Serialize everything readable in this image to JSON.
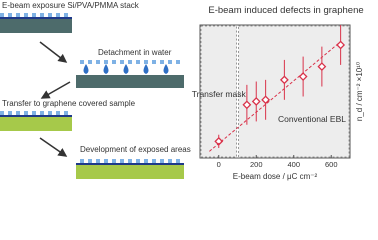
{
  "schematic": {
    "steps": [
      "E-beam exposure Si/PVA/PMMA stack",
      "Detachment in water",
      "Transfer to graphene covered sample",
      "Development of exposed areas"
    ]
  },
  "chart_data": {
    "type": "scatter",
    "title": "E-beam induced defects in graphene",
    "x_label": "E-beam dose / μC cm⁻²",
    "y_label": "n_d / cm⁻² ×10¹⁰",
    "xlim": [
      -100,
      700
    ],
    "xticks": [
      0,
      200,
      400,
      600
    ],
    "ylim": [
      0,
      8
    ],
    "regions": [
      {
        "label": "Transfer mask",
        "xlim": [
          -100,
          100
        ]
      },
      {
        "label": "Conventional EBL",
        "xlim": [
          100,
          700
        ]
      }
    ],
    "series": [
      {
        "color": "#d9324a",
        "x": [
          0,
          150,
          200,
          250,
          350,
          450,
          550,
          650
        ],
        "values": [
          1.0,
          3.2,
          3.4,
          3.5,
          4.7,
          4.9,
          5.5,
          6.8
        ],
        "errors": [
          0.4,
          1.2,
          1.2,
          1.2,
          1.2,
          1.2,
          1.2,
          1.2
        ]
      },
      {
        "color": "#d9324a",
        "style": "dashed",
        "x": [
          -50,
          650
        ],
        "values": [
          0.4,
          7.0
        ]
      }
    ]
  }
}
